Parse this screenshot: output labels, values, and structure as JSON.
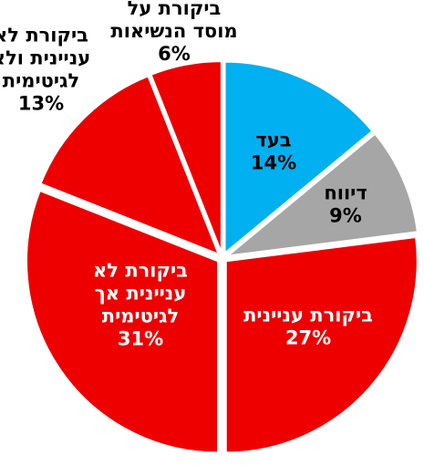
{
  "chart_data": {
    "type": "pie",
    "title": "",
    "slices": [
      {
        "label": "בעד",
        "value": 14,
        "value_label": "14%",
        "color": "#00B0F0"
      },
      {
        "label": "דיווח",
        "value": 9,
        "value_label": "9%",
        "color": "#A6A6A6"
      },
      {
        "label": "ביקורת עניינית",
        "value": 27,
        "value_label": "27%",
        "color": "#EE0000"
      },
      {
        "label": "ביקורת לא עניינית אך לגיטימית",
        "value": 31,
        "value_label": "31%",
        "color": "#EE0000"
      },
      {
        "label": "ביקורת לא עניינית ולא לגיטימית",
        "value": 13,
        "value_label": "13%",
        "color": "#EE0000"
      },
      {
        "label": "ביקורת על מוסד הנשיאות",
        "value": 6,
        "value_label": "6%",
        "color": "#EE0000"
      }
    ],
    "label_lines": [
      [
        "בעד",
        "14%"
      ],
      [
        "דיווח",
        "9%"
      ],
      [
        "ביקורת עניינית",
        "27%"
      ],
      [
        "ביקורת לא",
        "עניינית אך",
        "לגיטימית",
        "31%"
      ],
      [
        "ביקורת לא",
        "עניינית ולא",
        "לגיטימית",
        "13%"
      ],
      [
        "ביקורת על",
        "מוסד הנשיאות",
        "6%"
      ]
    ],
    "label_colors": [
      "#000000",
      "#000000",
      "#ffffff",
      "#ffffff",
      "#000000",
      "#000000"
    ]
  }
}
